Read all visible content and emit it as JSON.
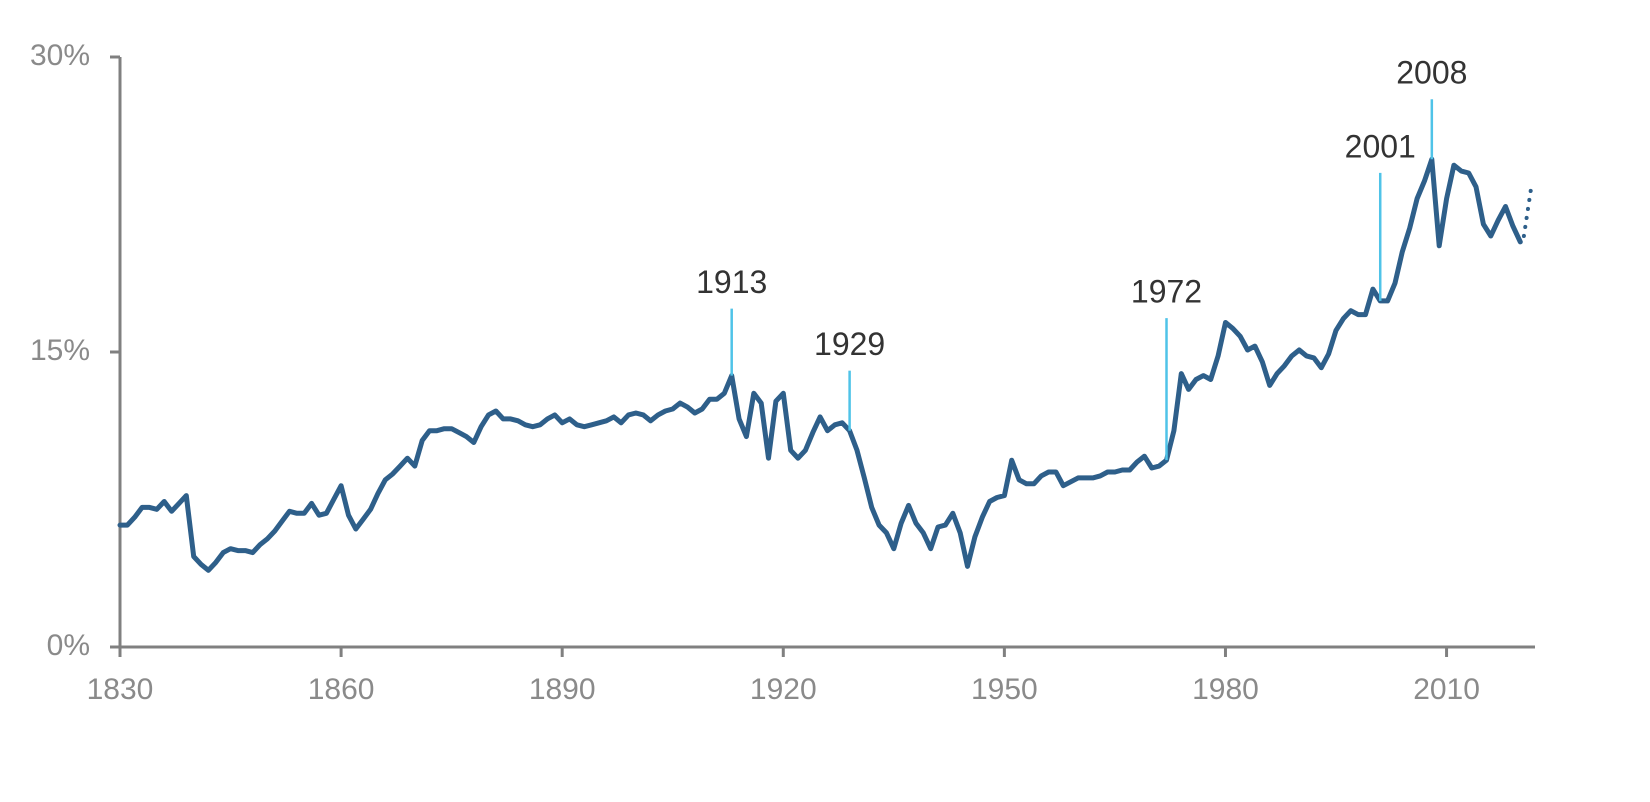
{
  "chart_data": {
    "type": "line",
    "xlim": [
      1830,
      2022
    ],
    "xticks": [
      1830,
      1860,
      1890,
      1920,
      1950,
      1980,
      2010
    ],
    "ylim": [
      0,
      30
    ],
    "yticks": [
      {
        "value": 0,
        "label": "0%"
      },
      {
        "value": 15,
        "label": "15%"
      },
      {
        "value": 30,
        "label": "30%"
      }
    ],
    "series": [
      {
        "color": "#2e5f8a",
        "dashed": false,
        "x": [
          1830,
          1831,
          1832,
          1833,
          1834,
          1835,
          1836,
          1837,
          1838,
          1839,
          1840,
          1841,
          1842,
          1843,
          1844,
          1845,
          1846,
          1847,
          1848,
          1849,
          1850,
          1851,
          1852,
          1853,
          1854,
          1855,
          1856,
          1857,
          1858,
          1859,
          1860,
          1861,
          1862,
          1863,
          1864,
          1865,
          1866,
          1867,
          1868,
          1869,
          1870,
          1871,
          1872,
          1873,
          1874,
          1875,
          1876,
          1877,
          1878,
          1879,
          1880,
          1881,
          1882,
          1883,
          1884,
          1885,
          1886,
          1887,
          1888,
          1889,
          1890,
          1891,
          1892,
          1893,
          1894,
          1895,
          1896,
          1897,
          1898,
          1899,
          1900,
          1901,
          1902,
          1903,
          1904,
          1905,
          1906,
          1907,
          1908,
          1909,
          1910,
          1911,
          1912,
          1913,
          1914,
          1915,
          1916,
          1917,
          1918,
          1919,
          1920,
          1921,
          1922,
          1923,
          1924,
          1925,
          1926,
          1927,
          1928,
          1929,
          1930,
          1931,
          1932,
          1933,
          1934,
          1935,
          1936,
          1937,
          1938,
          1939,
          1940,
          1941,
          1942,
          1943,
          1944,
          1945,
          1946,
          1947,
          1948,
          1949,
          1950,
          1951,
          1952,
          1953,
          1954,
          1955,
          1956,
          1957,
          1958,
          1959,
          1960,
          1961,
          1962,
          1963,
          1964,
          1965,
          1966,
          1967,
          1968,
          1969,
          1970,
          1971,
          1972,
          1973,
          1974,
          1975,
          1976,
          1977,
          1978,
          1979,
          1980,
          1981,
          1982,
          1983,
          1984,
          1985,
          1986,
          1987,
          1988,
          1989,
          1990,
          1991,
          1992,
          1993,
          1994,
          1995,
          1996,
          1997,
          1998,
          1999,
          2000,
          2001,
          2002,
          2003,
          2004,
          2005,
          2006,
          2007,
          2008,
          2009,
          2010,
          2011,
          2012,
          2013,
          2014,
          2015,
          2016,
          2017,
          2018,
          2019,
          2020
        ],
        "values": [
          6.2,
          6.2,
          6.6,
          7.1,
          7.1,
          7.0,
          7.4,
          6.9,
          7.3,
          7.7,
          4.6,
          4.2,
          3.9,
          4.3,
          4.8,
          5.0,
          4.9,
          4.9,
          4.8,
          5.2,
          5.5,
          5.9,
          6.4,
          6.9,
          6.8,
          6.8,
          7.3,
          6.7,
          6.8,
          7.5,
          8.2,
          6.7,
          6.0,
          6.5,
          7.0,
          7.8,
          8.5,
          8.8,
          9.2,
          9.6,
          9.2,
          10.5,
          11.0,
          11.0,
          11.1,
          11.1,
          10.9,
          10.7,
          10.4,
          11.2,
          11.8,
          12.0,
          11.6,
          11.6,
          11.5,
          11.3,
          11.2,
          11.3,
          11.6,
          11.8,
          11.4,
          11.6,
          11.3,
          11.2,
          11.3,
          11.4,
          11.5,
          11.7,
          11.4,
          11.8,
          11.9,
          11.8,
          11.5,
          11.8,
          12.0,
          12.1,
          12.4,
          12.2,
          11.9,
          12.1,
          12.6,
          12.6,
          12.9,
          13.8,
          11.6,
          10.7,
          12.9,
          12.4,
          9.6,
          12.5,
          12.9,
          10.0,
          9.6,
          10.0,
          10.9,
          11.7,
          11.0,
          11.3,
          11.4,
          11.0,
          10.0,
          8.6,
          7.1,
          6.2,
          5.8,
          5.0,
          6.3,
          7.2,
          6.3,
          5.8,
          5.0,
          6.1,
          6.2,
          6.8,
          5.8,
          4.1,
          5.6,
          6.6,
          7.4,
          7.6,
          7.7,
          9.5,
          8.5,
          8.3,
          8.3,
          8.7,
          8.9,
          8.9,
          8.2,
          8.4,
          8.6,
          8.6,
          8.6,
          8.7,
          8.9,
          8.9,
          9.0,
          9.0,
          9.4,
          9.7,
          9.1,
          9.2,
          9.5,
          11.0,
          13.9,
          13.1,
          13.6,
          13.8,
          13.6,
          14.8,
          16.5,
          16.2,
          15.8,
          15.1,
          15.3,
          14.5,
          13.3,
          13.9,
          14.3,
          14.8,
          15.1,
          14.8,
          14.7,
          14.2,
          14.9,
          16.1,
          16.7,
          17.1,
          16.9,
          16.9,
          18.2,
          17.6,
          17.6,
          18.5,
          20.1,
          21.3,
          22.8,
          23.7,
          24.8,
          20.4,
          22.8,
          24.5,
          24.2,
          24.1,
          23.4,
          21.5,
          20.9,
          21.7,
          22.4,
          21.4,
          20.6
        ]
      },
      {
        "color": "#2e5f8a",
        "dashed": true,
        "x": [
          2020.5,
          2021.5
        ],
        "values": [
          20.9,
          23.4
        ]
      }
    ],
    "annotations": [
      {
        "label": "1913",
        "x": 1913
      },
      {
        "label": "1929",
        "x": 1929
      },
      {
        "label": "1972",
        "x": 1972
      },
      {
        "label": "2001",
        "x": 2001
      },
      {
        "label": "2008",
        "x": 2008
      }
    ],
    "annotation_color": "#4fc3e8"
  }
}
